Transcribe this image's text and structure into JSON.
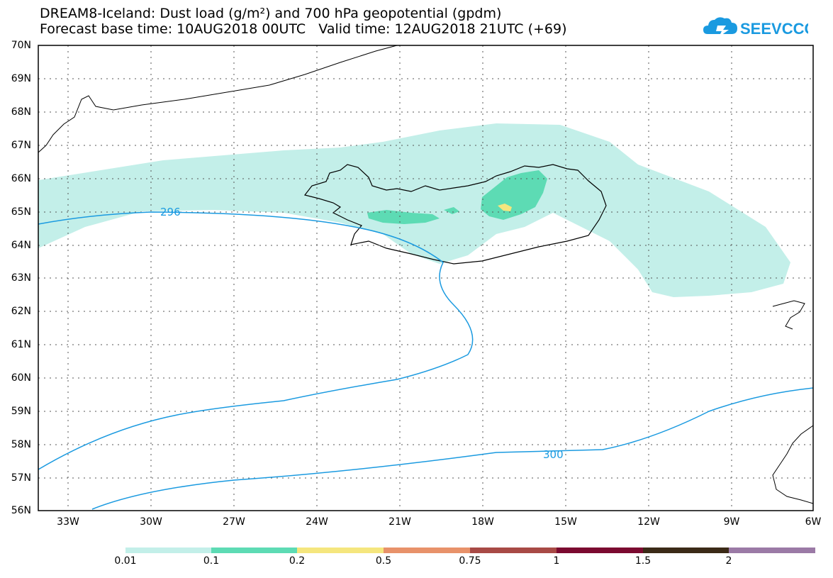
{
  "title": {
    "line1": "DREAM8-Iceland: Dust load (g/m²) and 700 hPa geopotential (gpdm)",
    "line2": "Forecast base time: 10AUG2018 00UTC   Valid time: 12AUG2018 21UTC (+69)"
  },
  "logo": {
    "text": "SEEVCCC",
    "icon": "cloud-icon",
    "color": "#1a9ae0"
  },
  "map": {
    "lat_labels": [
      "70N",
      "69N",
      "68N",
      "67N",
      "66N",
      "65N",
      "64N",
      "63N",
      "62N",
      "61N",
      "60N",
      "59N",
      "58N",
      "57N",
      "56N"
    ],
    "lon_labels": [
      "33W",
      "30W",
      "27W",
      "24W",
      "21W",
      "18W",
      "15W",
      "12W",
      "9W",
      "6W"
    ],
    "contours": [
      {
        "label": "296"
      },
      {
        "label": "300"
      }
    ],
    "contour_color": "#1a9ae0"
  },
  "legend": {
    "labels": [
      "0.01",
      "0.1",
      "0.2",
      "0.5",
      "0.75",
      "1",
      "1.5",
      "2"
    ],
    "colors": [
      "#c3efe9",
      "#5ddbb4",
      "#f5e67e",
      "#e8926a",
      "#a84a46",
      "#7b0a30",
      "#3b2a17",
      "#9b7aa6"
    ]
  }
}
